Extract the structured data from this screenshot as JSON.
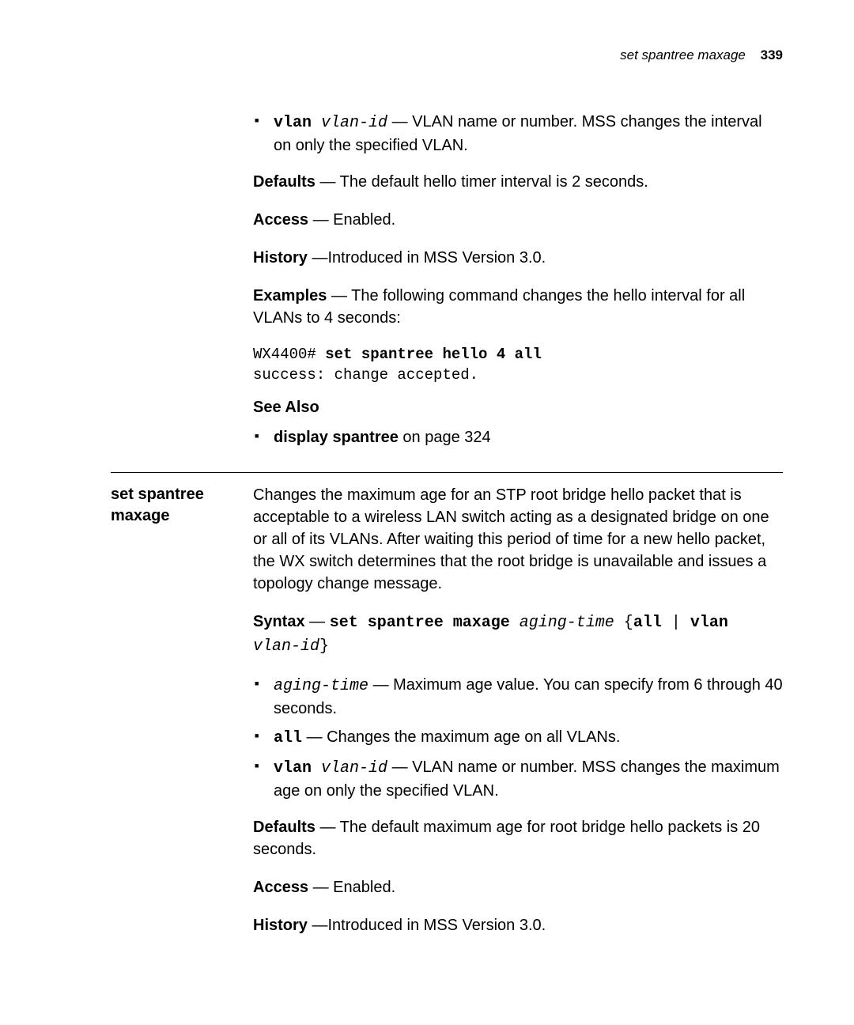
{
  "header": {
    "running_title": "set spantree maxage",
    "page_number": "339"
  },
  "top": {
    "bullet_vlan_code": "vlan",
    "bullet_vlan_param": " vlan-id",
    "bullet_vlan_text": " — VLAN name or number. MSS changes the interval on only the specified VLAN.",
    "defaults_label": "Defaults",
    "defaults_text": " — The default hello timer interval is 2 seconds.",
    "access_label": "Access",
    "access_text": " — Enabled.",
    "history_label": "History",
    "history_text": " —Introduced in MSS Version 3.0.",
    "examples_label": "Examples",
    "examples_text": " — The following command changes the hello interval for all VLANs to 4 seconds:",
    "example_code_prompt": "WX4400# ",
    "example_code_cmd": "set spantree hello 4 all",
    "example_code_response": "success: change accepted.",
    "see_also_label": "See Also",
    "see_also_item_bold": "display spantree",
    "see_also_item_rest": " on page 324"
  },
  "section": {
    "title_line1": "set spantree",
    "title_line2": "maxage",
    "intro": "Changes the maximum age for an STP root bridge hello packet that is acceptable to a wireless LAN switch acting as a designated bridge on one or all of its VLANs. After waiting this period of time for a new hello packet, the WX switch determines that the root bridge is unavailable and issues a topology change message.",
    "syntax_label": "Syntax",
    "syntax_dash": " — ",
    "syntax_cmd": "set spantree maxage",
    "syntax_param": " aging-time",
    "syntax_brace_open": " {",
    "syntax_all": "all",
    "syntax_pipe": " | ",
    "syntax_vlan": "vlan",
    "syntax_vlanid": " vlan-id",
    "syntax_brace_close": "}",
    "bullet1_param": "aging-time",
    "bullet1_text": " — Maximum age value. You can specify from 6 through 40 seconds.",
    "bullet2_code": "all",
    "bullet2_text": " — Changes the maximum age on all VLANs.",
    "bullet3_code": "vlan",
    "bullet3_param": " vlan-id",
    "bullet3_text": " — VLAN name or number. MSS changes the maximum age on only the specified VLAN.",
    "defaults_label": "Defaults",
    "defaults_text": " — The default maximum age for root bridge hello packets is 20 seconds.",
    "access_label": "Access",
    "access_text": " — Enabled.",
    "history_label": "History",
    "history_text": " —Introduced in MSS Version 3.0."
  }
}
